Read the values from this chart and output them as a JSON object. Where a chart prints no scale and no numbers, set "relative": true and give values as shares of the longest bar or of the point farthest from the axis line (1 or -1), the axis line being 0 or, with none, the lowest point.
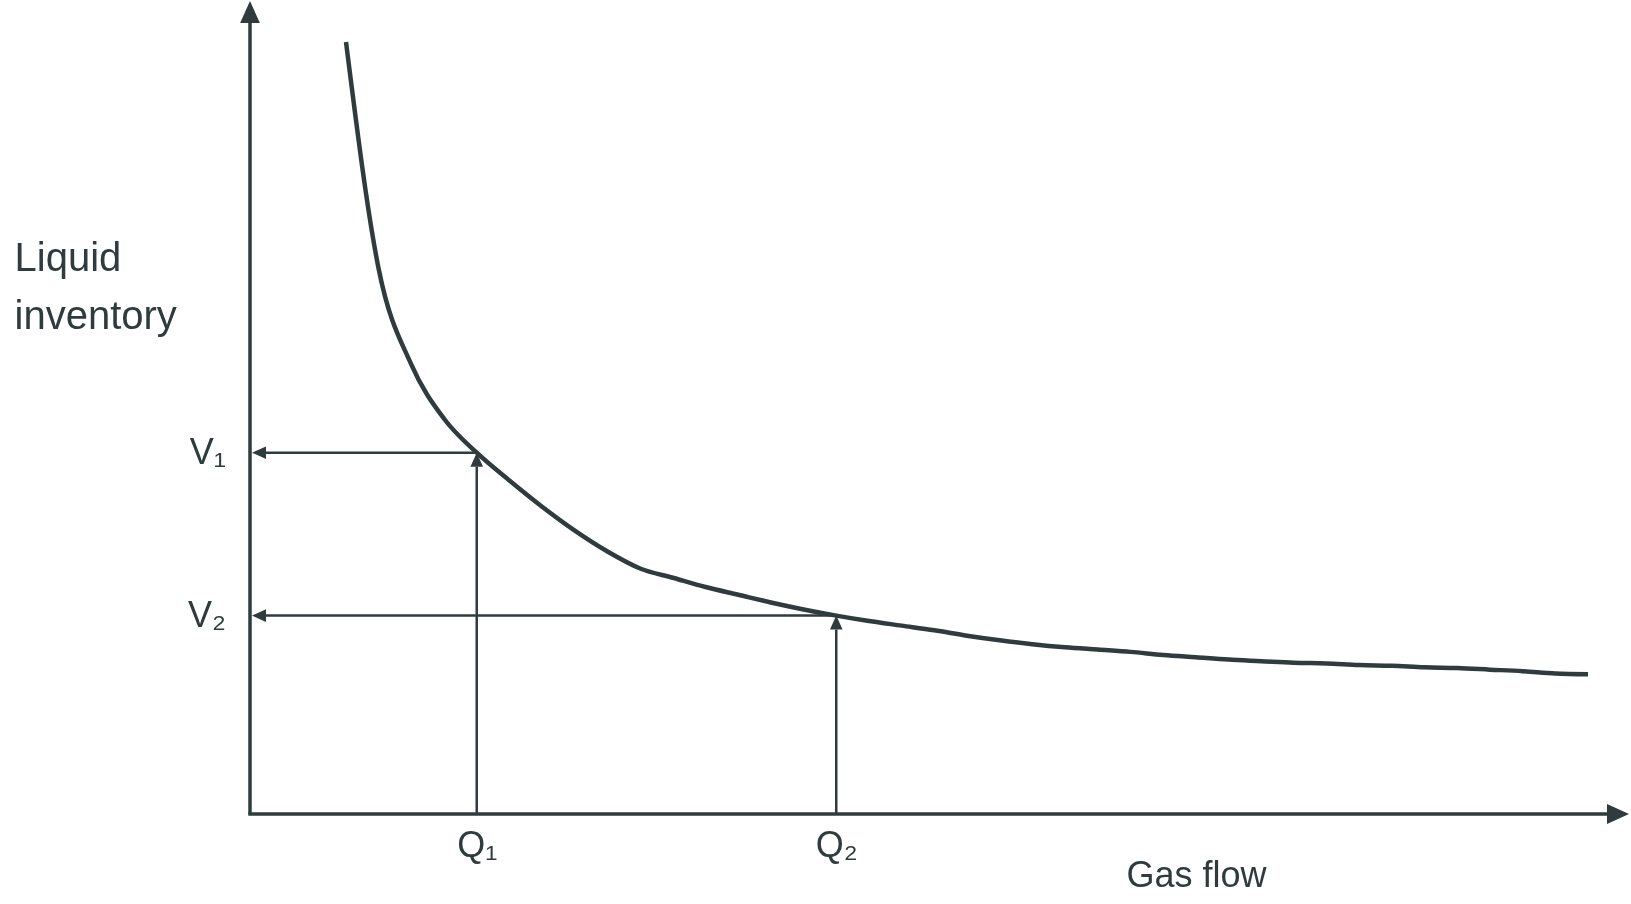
{
  "chart_data": {
    "type": "line",
    "relative": true,
    "xlabel": "Gas flow",
    "ylabel": "Liquid inventory",
    "categories": [
      null,
      null,
      null,
      null,
      "Q₁",
      null,
      null,
      null,
      null,
      null,
      null,
      null,
      null,
      null,
      null,
      "Q₂",
      null,
      null,
      null,
      null,
      null,
      null,
      null,
      null,
      null,
      null,
      null,
      null,
      null,
      null,
      null,
      null,
      null,
      null,
      null,
      null,
      null,
      null,
      null
    ],
    "series": [
      {
        "color": "#2f3b3d",
        "values": [
          1,
          0.706,
          0.582,
          0.512,
          0.468,
          0.432,
          0.398,
          0.367,
          0.34,
          0.318,
          0.306,
          0.294,
          0.284,
          0.274,
          0.265,
          0.257,
          0.25,
          0.244,
          0.238,
          0.231,
          0.225,
          0.22,
          0.216,
          0.213,
          0.21,
          0.206,
          0.203,
          0.2,
          0.198,
          0.196,
          0.195,
          0.193,
          0.192,
          0.19,
          0.189,
          0.187,
          0.185,
          0.182,
          0.181
        ]
      }
    ],
    "annotations": [
      "V₁",
      "V₂"
    ],
    "grid": false
  }
}
